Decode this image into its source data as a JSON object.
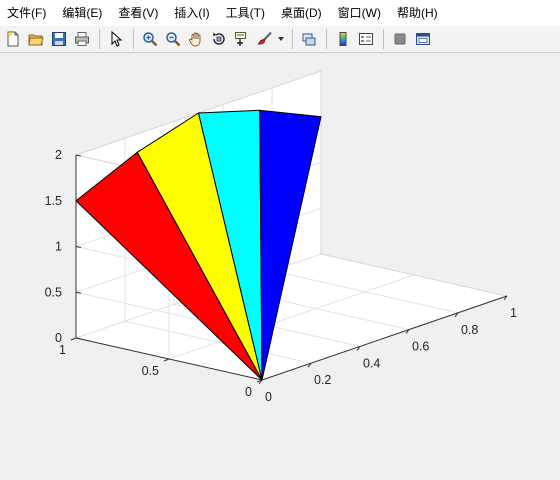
{
  "menubar": {
    "items": [
      {
        "label": "文件(F)"
      },
      {
        "label": "编辑(E)"
      },
      {
        "label": "查看(V)"
      },
      {
        "label": "插入(I)"
      },
      {
        "label": "工具(T)"
      },
      {
        "label": "桌面(D)"
      },
      {
        "label": "窗口(W)"
      },
      {
        "label": "帮助(H)"
      }
    ]
  },
  "toolbar": {
    "buttons": [
      "new-figure-icon",
      "open-file-icon",
      "save-icon",
      "print-icon",
      "select-arrow-icon",
      "zoom-in-icon",
      "zoom-out-icon",
      "pan-hand-icon",
      "rotate-3d-icon",
      "data-cursor-icon",
      "brush-icon",
      "link-plot-icon",
      "colorbar-icon",
      "legend-icon",
      "hide-plot-tools-icon",
      "show-plot-tools-icon"
    ]
  },
  "colors": {
    "red": "#ff0000",
    "yellow": "#ffff00",
    "cyan": "#00ffff",
    "blue": "#0000ff"
  },
  "axes": {
    "z_ticks": [
      "0",
      "0.5",
      "1",
      "1.5",
      "2"
    ],
    "y_ticks": [
      "0",
      "0.5",
      "1"
    ],
    "x_ticks": [
      "0",
      "0.2",
      "0.4",
      "0.6",
      "0.8",
      "1"
    ]
  },
  "chart_data": {
    "type": "patch3d",
    "xlim": [
      0,
      1
    ],
    "ylim": [
      0,
      1
    ],
    "zlim": [
      0,
      2
    ],
    "grid": true,
    "apex": {
      "x": 0,
      "y": 0,
      "z": 0
    },
    "triangles": [
      {
        "color": "red",
        "vertices": [
          [
            0,
            1,
            1.5
          ],
          [
            0.25,
            1,
            1.8
          ]
        ]
      },
      {
        "color": "yellow",
        "vertices": [
          [
            0.25,
            1,
            1.8
          ],
          [
            0.5,
            1,
            2
          ]
        ]
      },
      {
        "color": "cyan",
        "vertices": [
          [
            0.5,
            1,
            2
          ],
          [
            0.75,
            1,
            1.8
          ]
        ]
      },
      {
        "color": "blue",
        "vertices": [
          [
            0.75,
            1,
            1.8
          ],
          [
            1,
            1,
            1.5
          ]
        ]
      }
    ]
  }
}
